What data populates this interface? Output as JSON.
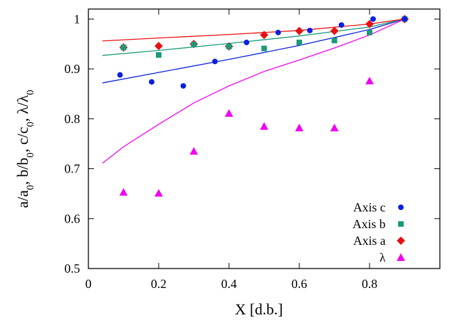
{
  "chart_data": {
    "type": "scatter",
    "xlabel": "X [d.b.]",
    "ylabel": "a/a0, b/b0, c/c0,  λ/λ0",
    "xlim": [
      0,
      1.0
    ],
    "ylim": [
      0.5,
      1.02
    ],
    "xticks": [
      "0",
      "0.2",
      "0.4",
      "0.6",
      "0.8"
    ],
    "yticks": [
      "0.5",
      "0.6",
      "0.7",
      "0.8",
      "0.9",
      "1"
    ],
    "grid": false,
    "legend_position": "bottom-right",
    "series": [
      {
        "name": "Axis c",
        "color": "#0a20e0",
        "marker": "circle",
        "points": [
          [
            0.09,
            0.888
          ],
          [
            0.18,
            0.874
          ],
          [
            0.27,
            0.866
          ],
          [
            0.36,
            0.915
          ],
          [
            0.45,
            0.953
          ],
          [
            0.54,
            0.973
          ],
          [
            0.63,
            0.977
          ],
          [
            0.72,
            0.988
          ],
          [
            0.81,
            1.0
          ],
          [
            0.9,
            1.0
          ]
        ],
        "fit": [
          [
            0.04,
            0.872
          ],
          [
            0.2,
            0.893
          ],
          [
            0.4,
            0.919
          ],
          [
            0.6,
            0.947
          ],
          [
            0.8,
            0.979
          ],
          [
            0.9,
            1.0
          ]
        ]
      },
      {
        "name": "Axis b",
        "color": "#1a9a7a",
        "marker": "square",
        "points": [
          [
            0.1,
            0.943
          ],
          [
            0.2,
            0.928
          ],
          [
            0.3,
            0.949
          ],
          [
            0.4,
            0.945
          ],
          [
            0.5,
            0.941
          ],
          [
            0.6,
            0.953
          ],
          [
            0.7,
            0.957
          ],
          [
            0.8,
            0.973
          ],
          [
            0.9,
            1.0
          ]
        ],
        "fit": [
          [
            0.04,
            0.927
          ],
          [
            0.2,
            0.937
          ],
          [
            0.4,
            0.951
          ],
          [
            0.6,
            0.966
          ],
          [
            0.8,
            0.984
          ],
          [
            0.9,
            1.0
          ]
        ]
      },
      {
        "name": "Axis a",
        "color": "#e81010",
        "marker": "diamond",
        "points": [
          [
            0.1,
            0.943
          ],
          [
            0.2,
            0.946
          ],
          [
            0.3,
            0.95
          ],
          [
            0.4,
            0.945
          ],
          [
            0.5,
            0.968
          ],
          [
            0.6,
            0.976
          ],
          [
            0.7,
            0.976
          ],
          [
            0.8,
            0.99
          ],
          [
            0.9,
            1.0
          ]
        ],
        "fit": [
          [
            0.04,
            0.956
          ],
          [
            0.2,
            0.962
          ],
          [
            0.4,
            0.969
          ],
          [
            0.6,
            0.977
          ],
          [
            0.8,
            0.99
          ],
          [
            0.9,
            1.0
          ]
        ]
      },
      {
        "name": "λ",
        "color": "#f000f0",
        "marker": "triangle",
        "points": [
          [
            0.1,
            0.653
          ],
          [
            0.2,
            0.651
          ],
          [
            0.3,
            0.735
          ],
          [
            0.4,
            0.811
          ],
          [
            0.5,
            0.785
          ],
          [
            0.6,
            0.782
          ],
          [
            0.7,
            0.782
          ],
          [
            0.8,
            0.876
          ]
        ],
        "fit": [
          [
            0.04,
            0.711
          ],
          [
            0.1,
            0.744
          ],
          [
            0.2,
            0.789
          ],
          [
            0.3,
            0.832
          ],
          [
            0.4,
            0.866
          ],
          [
            0.5,
            0.895
          ],
          [
            0.6,
            0.918
          ],
          [
            0.7,
            0.942
          ],
          [
            0.8,
            0.968
          ],
          [
            0.9,
            1.0
          ]
        ]
      }
    ]
  }
}
